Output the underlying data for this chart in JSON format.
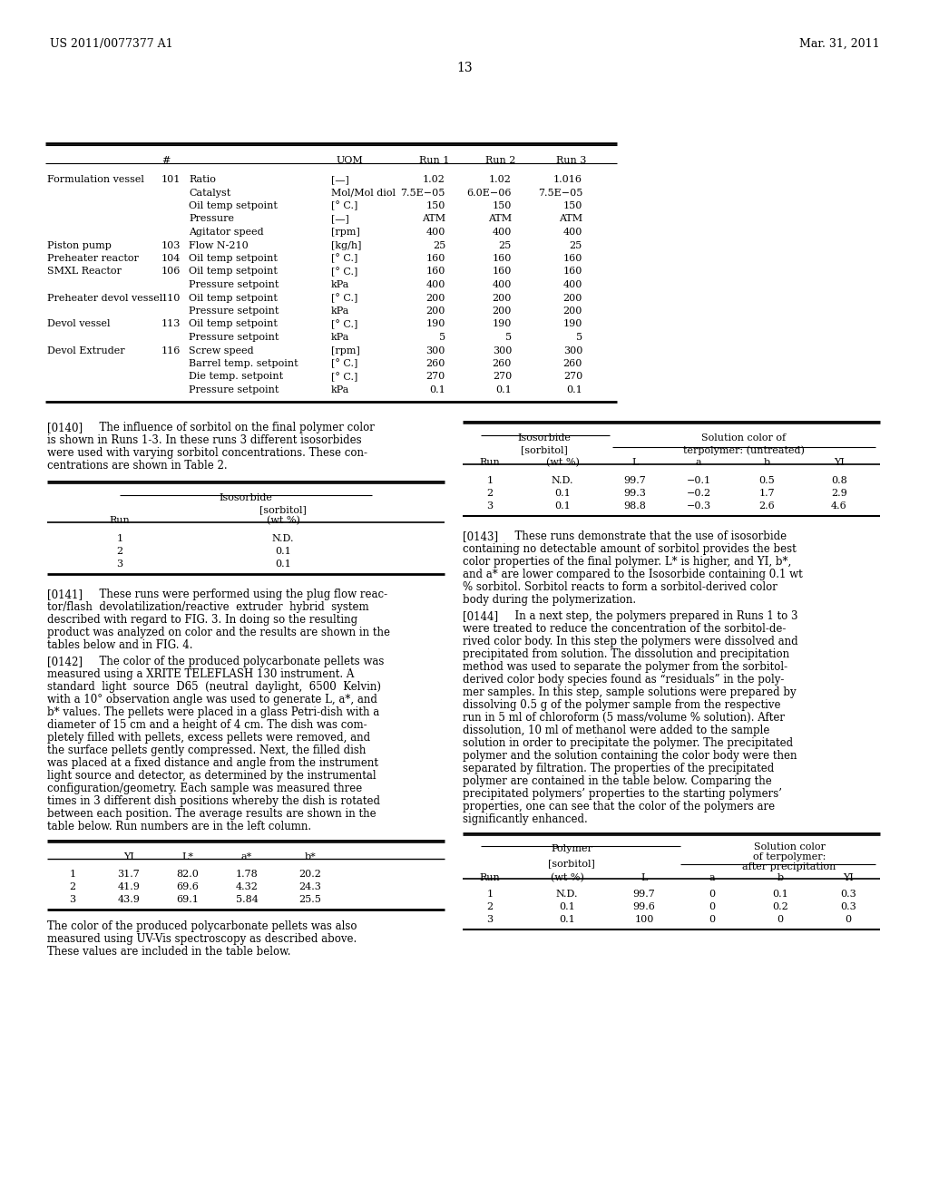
{
  "header_left": "US 2011/0077377 A1",
  "header_right": "Mar. 31, 2011",
  "page_num": "13",
  "bg_color": "#ffffff",
  "main_table_rows": [
    [
      "Formulation vessel",
      "101",
      "Ratio",
      "[—]",
      "1.02",
      "1.02",
      "1.016"
    ],
    [
      "",
      "",
      "Catalyst",
      "Mol/Mol diol",
      "7.5E−05",
      "6.0E−06",
      "7.5E−05"
    ],
    [
      "",
      "",
      "Oil temp setpoint",
      "[° C.]",
      "150",
      "150",
      "150"
    ],
    [
      "",
      "",
      "Pressure",
      "[—]",
      "ATM",
      "ATM",
      "ATM"
    ],
    [
      "",
      "",
      "Agitator speed",
      "[rpm]",
      "400",
      "400",
      "400"
    ],
    [
      "Piston pump",
      "103",
      "Flow N-210",
      "[kg/h]",
      "25",
      "25",
      "25"
    ],
    [
      "Preheater reactor",
      "104",
      "Oil temp setpoint",
      "[° C.]",
      "160",
      "160",
      "160"
    ],
    [
      "SMXL Reactor",
      "106",
      "Oil temp setpoint",
      "[° C.]",
      "160",
      "160",
      "160"
    ],
    [
      "",
      "",
      "Pressure setpoint",
      "kPa",
      "400",
      "400",
      "400"
    ],
    [
      "Preheater devol vessel",
      "110",
      "Oil temp setpoint",
      "[° C.]",
      "200",
      "200",
      "200"
    ],
    [
      "",
      "",
      "Pressure setpoint",
      "kPa",
      "200",
      "200",
      "200"
    ],
    [
      "Devol vessel",
      "113",
      "Oil temp setpoint",
      "[° C.]",
      "190",
      "190",
      "190"
    ],
    [
      "",
      "",
      "Pressure setpoint",
      "kPa",
      "5",
      "5",
      "5"
    ],
    [
      "Devol Extruder",
      "116",
      "Screw speed",
      "[rpm]",
      "300",
      "300",
      "300"
    ],
    [
      "",
      "",
      "Barrel temp. setpoint",
      "[° C.]",
      "260",
      "260",
      "260"
    ],
    [
      "",
      "",
      "Die temp. setpoint",
      "[° C.]",
      "270",
      "270",
      "270"
    ],
    [
      "",
      "",
      "Pressure setpoint",
      "kPa",
      "0.1",
      "0.1",
      "0.1"
    ]
  ],
  "para140_lines": [
    "[0140]   The influence of sorbitol on the final polymer color",
    "is shown in Runs 1-3. In these runs 3 different isosorbides",
    "were used with varying sorbitol concentrations. These con-",
    "centrations are shown in Table 2."
  ],
  "left_table2_rows": [
    [
      "1",
      "N.D."
    ],
    [
      "2",
      "0.1"
    ],
    [
      "3",
      "0.1"
    ]
  ],
  "right_table2_rows": [
    [
      "1",
      "N.D.",
      "99.7",
      "−0.1",
      "0.5",
      "0.8"
    ],
    [
      "2",
      "0.1",
      "99.3",
      "−0.2",
      "1.7",
      "2.9"
    ],
    [
      "3",
      "0.1",
      "98.8",
      "−0.3",
      "2.6",
      "4.6"
    ]
  ],
  "para141_lines": [
    "[0141]   These runs were performed using the plug flow reac-",
    "tor/flash  devolatilization/reactive  extruder  hybrid  system",
    "described with regard to FIG. 3. In doing so the resulting",
    "product was analyzed on color and the results are shown in the",
    "tables below and in FIG. 4."
  ],
  "para142_lines": [
    "[0142]   The color of the produced polycarbonate pellets was",
    "measured using a XRITE TELEFLASH 130 instrument. A",
    "standard  light  source  D65  (neutral  daylight,  6500  Kelvin)",
    "with a 10° observation angle was used to generate L, a*, and",
    "b* values. The pellets were placed in a glass Petri-dish with a",
    "diameter of 15 cm and a height of 4 cm. The dish was com-",
    "pletely filled with pellets, excess pellets were removed, and",
    "the surface pellets gently compressed. Next, the filled dish",
    "was placed at a fixed distance and angle from the instrument",
    "light source and detector, as determined by the instrumental",
    "configuration/geometry. Each sample was measured three",
    "times in 3 different dish positions whereby the dish is rotated",
    "between each position. The average results are shown in the",
    "table below. Run numbers are in the left column."
  ],
  "para143_lines": [
    "[0143]   These runs demonstrate that the use of isosorbide",
    "containing no detectable amount of sorbitol provides the best",
    "color properties of the final polymer. L* is higher, and YI, b*,",
    "and a* are lower compared to the Isosorbide containing 0.1 wt",
    "% sorbitol. Sorbitol reacts to form a sorbitol-derived color",
    "body during the polymerization."
  ],
  "para144_lines": [
    "[0144]   In a next step, the polymers prepared in Runs 1 to 3",
    "were treated to reduce the concentration of the sorbitol-de-",
    "rived color body. In this step the polymers were dissolved and",
    "precipitated from solution. The dissolution and precipitation",
    "method was used to separate the polymer from the sorbitol-",
    "derived color body species found as “residuals” in the poly-",
    "mer samples. In this step, sample solutions were prepared by",
    "dissolving 0.5 g of the polymer sample from the respective",
    "run in 5 ml of chloroform (5 mass/volume % solution). After",
    "dissolution, 10 ml of methanol were added to the sample",
    "solution in order to precipitate the polymer. The precipitated",
    "polymer and the solution containing the color body were then",
    "separated by filtration. The properties of the precipitated",
    "polymer are contained in the table below. Comparing the",
    "precipitated polymers’ properties to the starting polymers’",
    "properties, one can see that the color of the polymers are",
    "significantly enhanced."
  ],
  "bottom_left_table_rows": [
    [
      "1",
      "31.7",
      "82.0",
      "1.78",
      "20.2"
    ],
    [
      "2",
      "41.9",
      "69.6",
      "4.32",
      "24.3"
    ],
    [
      "3",
      "43.9",
      "69.1",
      "5.84",
      "25.5"
    ]
  ],
  "bottom_left_note_lines": [
    "The color of the produced polycarbonate pellets was also",
    "measured using UV-Vis spectroscopy as described above.",
    "These values are included in the table below."
  ],
  "bottom_right_table_rows": [
    [
      "1",
      "N.D.",
      "99.7",
      "0",
      "0.1",
      "0.3"
    ],
    [
      "2",
      "0.1",
      "99.6",
      "0",
      "0.2",
      "0.3"
    ],
    [
      "3",
      "0.1",
      "100",
      "0",
      "0",
      "0"
    ]
  ]
}
